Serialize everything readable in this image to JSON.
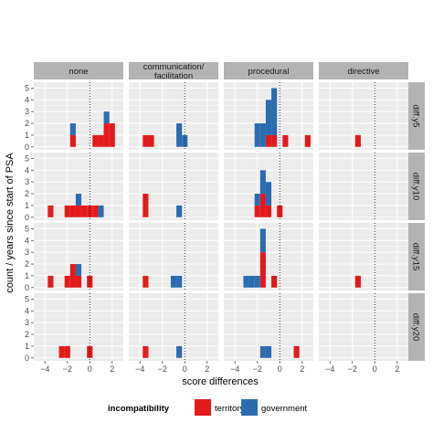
{
  "chart_data": {
    "type": "bar",
    "subtype": "faceted histogram (stacked)",
    "x_axis_label": "score differences",
    "y_axis_label": "count / years since start of PSA",
    "x_ticks": [
      -4,
      -2,
      0,
      2
    ],
    "x_tick_labels": [
      "−4",
      "−2",
      "0",
      "2"
    ],
    "x_range": [
      -5,
      3
    ],
    "y_ticks": [
      0,
      1,
      2,
      3,
      4,
      5
    ],
    "y_tick_labels": [
      "0",
      "1",
      "2",
      "3",
      "4",
      "5"
    ],
    "y_range": [
      -0.25,
      5.5
    ],
    "reference_line_x": 0,
    "bin_width": 0.5,
    "grid": true,
    "legend": {
      "title": "incompatibility",
      "position": "bottom",
      "items": [
        {
          "label": "territory",
          "color": "#e31a1c"
        },
        {
          "label": "government",
          "color": "#2b6cb0"
        }
      ]
    },
    "columns": [
      "none",
      "communication/\nfacilitation",
      "procedural",
      "directive"
    ],
    "column_labels": [
      [
        "none"
      ],
      [
        "communication/",
        "facilitation"
      ],
      [
        "procedural"
      ],
      [
        "directive"
      ]
    ],
    "rows": [
      "diff.y5",
      "diff.y10",
      "diff.y15",
      "diff.y20"
    ],
    "panels": [
      [
        {
          "territory": [
            [
              -1.5,
              1
            ],
            [
              0.5,
              1
            ],
            [
              1,
              1
            ],
            [
              1.5,
              2
            ],
            [
              2,
              2
            ]
          ],
          "government": [
            [
              -1.5,
              1
            ],
            [
              1.5,
              1
            ]
          ]
        },
        {
          "territory": [
            [
              -3.5,
              1
            ],
            [
              -3,
              1
            ]
          ],
          "government": [
            [
              -0.5,
              2
            ],
            [
              0,
              1
            ]
          ]
        },
        {
          "territory": [
            [
              -1,
              1
            ],
            [
              -0.5,
              1
            ],
            [
              0.5,
              1
            ],
            [
              2.5,
              1
            ]
          ],
          "government": [
            [
              -2,
              2
            ],
            [
              -1.5,
              2
            ],
            [
              -1,
              3
            ],
            [
              -0.5,
              4
            ]
          ]
        },
        {
          "territory": [
            [
              -1.5,
              1
            ]
          ],
          "government": []
        }
      ],
      [
        {
          "territory": [
            [
              -3.5,
              1
            ],
            [
              -2,
              1
            ],
            [
              -1.5,
              1
            ],
            [
              -1,
              1
            ],
            [
              -0.5,
              1
            ],
            [
              0,
              1
            ],
            [
              0.5,
              1
            ]
          ],
          "government": [
            [
              -1,
              1
            ],
            [
              1,
              1
            ]
          ]
        },
        {
          "territory": [
            [
              -3.5,
              2
            ]
          ],
          "government": [
            [
              -0.5,
              1
            ]
          ]
        },
        {
          "territory": [
            [
              -2,
              1
            ],
            [
              -1.5,
              2
            ],
            [
              -1,
              1
            ],
            [
              0,
              1
            ]
          ],
          "government": [
            [
              -2,
              1
            ],
            [
              -1,
              2
            ],
            [
              -1.5,
              2
            ]
          ]
        },
        {
          "territory": [],
          "government": []
        }
      ],
      [
        {
          "territory": [
            [
              -3.5,
              1
            ],
            [
              -2,
              1
            ],
            [
              -1.5,
              2
            ],
            [
              -1,
              1
            ],
            [
              0,
              1
            ]
          ],
          "government": [
            [
              -1,
              1
            ]
          ]
        },
        {
          "territory": [
            [
              -3.5,
              1
            ]
          ],
          "government": [
            [
              -1,
              1
            ],
            [
              -0.5,
              1
            ]
          ]
        },
        {
          "territory": [
            [
              -1.5,
              3
            ],
            [
              -0.5,
              1
            ]
          ],
          "government": [
            [
              -3,
              1
            ],
            [
              -2.5,
              1
            ],
            [
              -2,
              1
            ],
            [
              -1.5,
              2
            ]
          ]
        },
        {
          "territory": [
            [
              -1.5,
              1
            ]
          ],
          "government": []
        }
      ],
      [
        {
          "territory": [
            [
              -2.5,
              1
            ],
            [
              -2,
              1
            ],
            [
              0,
              1
            ]
          ],
          "government": []
        },
        {
          "territory": [
            [
              -3.5,
              1
            ]
          ],
          "government": [
            [
              -0.5,
              1
            ]
          ]
        },
        {
          "territory": [
            [
              1.5,
              1
            ]
          ],
          "government": [
            [
              -1.5,
              1
            ],
            [
              -1,
              1
            ]
          ]
        },
        {
          "territory": [],
          "government": []
        }
      ]
    ]
  }
}
